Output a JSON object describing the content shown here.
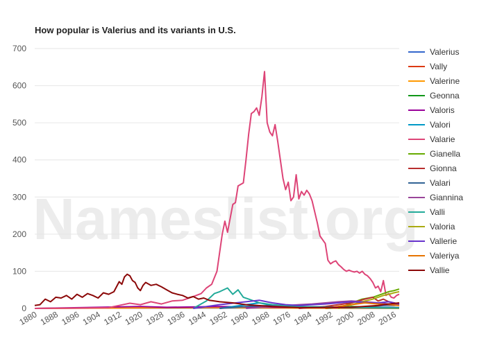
{
  "chart_data": {
    "type": "line",
    "title": "How popular is Valerius and its variants in U.S.",
    "watermark": "Nameslist.org",
    "xlabel": "",
    "ylabel": "",
    "xlim": [
      1880,
      2018
    ],
    "ylim": [
      0,
      700
    ],
    "yticks": [
      0,
      100,
      200,
      300,
      400,
      500,
      600,
      700
    ],
    "xticks": [
      1880,
      1888,
      1896,
      1904,
      1912,
      1920,
      1928,
      1936,
      1944,
      1952,
      1960,
      1968,
      1976,
      1984,
      1992,
      2000,
      2008,
      2016
    ],
    "grid": true,
    "legend_position": "right",
    "series": [
      {
        "name": "Valerius",
        "color": "#3366cc",
        "points": [
          [
            1990,
            0
          ],
          [
            2000,
            3
          ],
          [
            2008,
            6
          ],
          [
            2012,
            8
          ],
          [
            2016,
            8
          ],
          [
            2018,
            10
          ]
        ]
      },
      {
        "name": "Vally",
        "color": "#dc3912",
        "points": [
          [
            1880,
            0
          ],
          [
            1940,
            2
          ],
          [
            1960,
            3
          ],
          [
            1980,
            2
          ],
          [
            2000,
            2
          ],
          [
            2018,
            2
          ]
        ]
      },
      {
        "name": "Valerine",
        "color": "#ff9900",
        "points": [
          [
            1880,
            0
          ],
          [
            1920,
            2
          ],
          [
            1940,
            3
          ],
          [
            1960,
            2
          ],
          [
            1980,
            1
          ],
          [
            2018,
            0
          ]
        ]
      },
      {
        "name": "Geonna",
        "color": "#109618",
        "points": [
          [
            1990,
            0
          ],
          [
            1995,
            3
          ],
          [
            2000,
            5
          ],
          [
            2005,
            4
          ],
          [
            2010,
            3
          ],
          [
            2018,
            2
          ]
        ]
      },
      {
        "name": "Valoris",
        "color": "#990099",
        "points": [
          [
            1880,
            0
          ],
          [
            1920,
            5
          ],
          [
            1930,
            3
          ],
          [
            1950,
            5
          ],
          [
            1970,
            3
          ],
          [
            2018,
            1
          ]
        ]
      },
      {
        "name": "Valori",
        "color": "#0099c6",
        "points": [
          [
            1950,
            0
          ],
          [
            1960,
            10
          ],
          [
            1965,
            15
          ],
          [
            1970,
            8
          ],
          [
            1980,
            5
          ],
          [
            1990,
            3
          ],
          [
            2018,
            1
          ]
        ]
      },
      {
        "name": "Valarie",
        "color": "#dd4477",
        "points": [
          [
            1880,
            0
          ],
          [
            1908,
            2
          ],
          [
            1912,
            8
          ],
          [
            1916,
            14
          ],
          [
            1920,
            10
          ],
          [
            1924,
            18
          ],
          [
            1928,
            12
          ],
          [
            1932,
            20
          ],
          [
            1936,
            22
          ],
          [
            1940,
            32
          ],
          [
            1943,
            40
          ],
          [
            1945,
            55
          ],
          [
            1947,
            65
          ],
          [
            1949,
            100
          ],
          [
            1951,
            200
          ],
          [
            1952,
            235
          ],
          [
            1953,
            205
          ],
          [
            1955,
            280
          ],
          [
            1956,
            285
          ],
          [
            1957,
            330
          ],
          [
            1959,
            338
          ],
          [
            1960,
            400
          ],
          [
            1961,
            470
          ],
          [
            1962,
            525
          ],
          [
            1963,
            530
          ],
          [
            1964,
            540
          ],
          [
            1965,
            520
          ],
          [
            1966,
            570
          ],
          [
            1967,
            638
          ],
          [
            1968,
            500
          ],
          [
            1969,
            475
          ],
          [
            1970,
            465
          ],
          [
            1971,
            495
          ],
          [
            1972,
            450
          ],
          [
            1973,
            400
          ],
          [
            1974,
            350
          ],
          [
            1975,
            320
          ],
          [
            1976,
            340
          ],
          [
            1977,
            290
          ],
          [
            1978,
            300
          ],
          [
            1979,
            360
          ],
          [
            1980,
            295
          ],
          [
            1981,
            315
          ],
          [
            1982,
            305
          ],
          [
            1983,
            318
          ],
          [
            1984,
            308
          ],
          [
            1985,
            290
          ],
          [
            1986,
            260
          ],
          [
            1987,
            230
          ],
          [
            1988,
            195
          ],
          [
            1989,
            185
          ],
          [
            1990,
            175
          ],
          [
            1991,
            130
          ],
          [
            1992,
            120
          ],
          [
            1993,
            125
          ],
          [
            1994,
            128
          ],
          [
            1995,
            118
          ],
          [
            1996,
            112
          ],
          [
            1997,
            105
          ],
          [
            1998,
            100
          ],
          [
            1999,
            103
          ],
          [
            2000,
            100
          ],
          [
            2001,
            98
          ],
          [
            2002,
            100
          ],
          [
            2003,
            95
          ],
          [
            2004,
            100
          ],
          [
            2005,
            92
          ],
          [
            2006,
            88
          ],
          [
            2007,
            80
          ],
          [
            2008,
            70
          ],
          [
            2009,
            55
          ],
          [
            2010,
            60
          ],
          [
            2011,
            45
          ],
          [
            2012,
            75
          ],
          [
            2013,
            35
          ],
          [
            2014,
            40
          ],
          [
            2015,
            30
          ],
          [
            2016,
            28
          ],
          [
            2017,
            35
          ],
          [
            2018,
            38
          ]
        ]
      },
      {
        "name": "Gianella",
        "color": "#66aa00",
        "points": [
          [
            1995,
            0
          ],
          [
            2000,
            15
          ],
          [
            2004,
            25
          ],
          [
            2008,
            30
          ],
          [
            2010,
            35
          ],
          [
            2012,
            40
          ],
          [
            2014,
            45
          ],
          [
            2016,
            48
          ],
          [
            2018,
            52
          ]
        ]
      },
      {
        "name": "Gionna",
        "color": "#b82e2e",
        "points": [
          [
            1980,
            0
          ],
          [
            1990,
            5
          ],
          [
            2000,
            15
          ],
          [
            2005,
            25
          ],
          [
            2008,
            30
          ],
          [
            2010,
            20
          ],
          [
            2012,
            25
          ],
          [
            2014,
            18
          ],
          [
            2016,
            15
          ],
          [
            2018,
            12
          ]
        ]
      },
      {
        "name": "Valari",
        "color": "#316395",
        "points": [
          [
            1950,
            0
          ],
          [
            1960,
            5
          ],
          [
            1970,
            8
          ],
          [
            1980,
            5
          ],
          [
            1990,
            4
          ],
          [
            2000,
            3
          ],
          [
            2018,
            2
          ]
        ]
      },
      {
        "name": "Giannina",
        "color": "#994499",
        "points": [
          [
            1960,
            0
          ],
          [
            1980,
            10
          ],
          [
            1985,
            12
          ],
          [
            1990,
            15
          ],
          [
            1995,
            18
          ],
          [
            2000,
            20
          ],
          [
            2005,
            18
          ],
          [
            2010,
            15
          ],
          [
            2014,
            12
          ],
          [
            2018,
            10
          ]
        ]
      },
      {
        "name": "Valli",
        "color": "#22aa99",
        "points": [
          [
            1940,
            0
          ],
          [
            1945,
            20
          ],
          [
            1948,
            40
          ],
          [
            1950,
            45
          ],
          [
            1953,
            55
          ],
          [
            1955,
            38
          ],
          [
            1957,
            50
          ],
          [
            1959,
            30
          ],
          [
            1961,
            25
          ],
          [
            1963,
            20
          ],
          [
            1965,
            15
          ],
          [
            1970,
            10
          ],
          [
            1980,
            5
          ],
          [
            2000,
            2
          ],
          [
            2018,
            1
          ]
        ]
      },
      {
        "name": "Valoria",
        "color": "#aaaa11",
        "points": [
          [
            1990,
            0
          ],
          [
            2000,
            10
          ],
          [
            2005,
            20
          ],
          [
            2008,
            25
          ],
          [
            2010,
            30
          ],
          [
            2012,
            35
          ],
          [
            2014,
            38
          ],
          [
            2016,
            42
          ],
          [
            2018,
            45
          ]
        ]
      },
      {
        "name": "Vallerie",
        "color": "#6633cc",
        "points": [
          [
            1940,
            0
          ],
          [
            1950,
            10
          ],
          [
            1960,
            18
          ],
          [
            1965,
            22
          ],
          [
            1970,
            15
          ],
          [
            1975,
            10
          ],
          [
            1980,
            8
          ],
          [
            1985,
            10
          ],
          [
            1990,
            12
          ],
          [
            1995,
            15
          ],
          [
            2000,
            18
          ],
          [
            2005,
            16
          ],
          [
            2010,
            15
          ],
          [
            2014,
            18
          ],
          [
            2018,
            12
          ]
        ]
      },
      {
        "name": "Valeriya",
        "color": "#e67300",
        "points": [
          [
            1990,
            0
          ],
          [
            1995,
            5
          ],
          [
            2000,
            10
          ],
          [
            2005,
            15
          ],
          [
            2010,
            12
          ],
          [
            2014,
            10
          ],
          [
            2018,
            8
          ]
        ]
      },
      {
        "name": "Vallie",
        "color": "#8b0707",
        "points": [
          [
            1880,
            8
          ],
          [
            1882,
            10
          ],
          [
            1884,
            25
          ],
          [
            1886,
            18
          ],
          [
            1888,
            30
          ],
          [
            1890,
            28
          ],
          [
            1892,
            35
          ],
          [
            1894,
            25
          ],
          [
            1896,
            38
          ],
          [
            1898,
            30
          ],
          [
            1900,
            40
          ],
          [
            1902,
            35
          ],
          [
            1904,
            28
          ],
          [
            1906,
            42
          ],
          [
            1908,
            38
          ],
          [
            1910,
            45
          ],
          [
            1912,
            72
          ],
          [
            1913,
            65
          ],
          [
            1914,
            85
          ],
          [
            1915,
            92
          ],
          [
            1916,
            88
          ],
          [
            1917,
            75
          ],
          [
            1918,
            70
          ],
          [
            1919,
            55
          ],
          [
            1920,
            48
          ],
          [
            1921,
            62
          ],
          [
            1922,
            70
          ],
          [
            1924,
            62
          ],
          [
            1926,
            65
          ],
          [
            1928,
            58
          ],
          [
            1930,
            50
          ],
          [
            1932,
            42
          ],
          [
            1934,
            38
          ],
          [
            1936,
            35
          ],
          [
            1938,
            28
          ],
          [
            1940,
            32
          ],
          [
            1942,
            25
          ],
          [
            1944,
            28
          ],
          [
            1946,
            22
          ],
          [
            1948,
            20
          ],
          [
            1950,
            18
          ],
          [
            1955,
            15
          ],
          [
            1960,
            10
          ],
          [
            1970,
            5
          ],
          [
            1980,
            2
          ],
          [
            2000,
            3
          ],
          [
            2010,
            8
          ],
          [
            2014,
            12
          ],
          [
            2018,
            15
          ]
        ]
      }
    ]
  }
}
